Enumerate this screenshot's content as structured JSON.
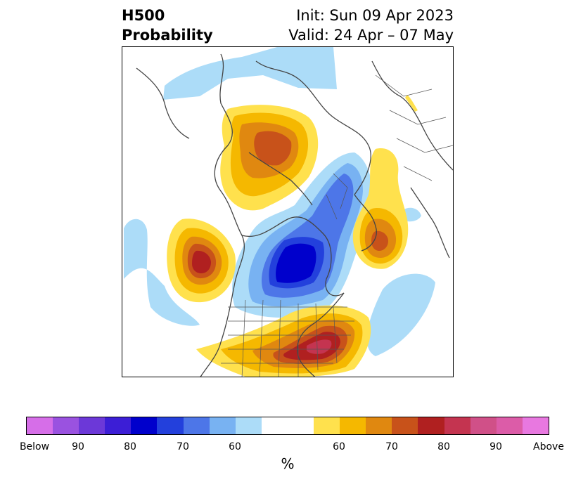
{
  "header": {
    "left_line1": "H500",
    "left_line2": "Probability",
    "right_line1": "Init: Sun 09 Apr 2023",
    "right_line2": "Valid: 24 Apr – 07 May"
  },
  "colorbar": {
    "unit": "%",
    "colors": [
      "#d66ee8",
      "#9a52e0",
      "#6c38d8",
      "#3c1ed6",
      "#0000cc",
      "#2340dc",
      "#4d76e8",
      "#78b2f2",
      "#acdcf8",
      "#ffffff",
      "#ffe14d",
      "#f5b800",
      "#e08810",
      "#c8521a",
      "#b02020",
      "#c43450",
      "#d05088",
      "#dc5ca8",
      "#e878e0"
    ],
    "tick_labels": [
      "Below",
      "90",
      "80",
      "70",
      "60",
      "60",
      "70",
      "80",
      "90",
      "Above"
    ]
  },
  "map": {
    "projection": "north-polar-stereographic",
    "colors": {
      "blue_60": "#acdcf8",
      "blue_65": "#78b2f2",
      "blue_70": "#4d76e8",
      "blue_80": "#2340dc",
      "blue_90": "#0000cc",
      "yellow_60": "#ffe14d",
      "yellow_65": "#f5b800",
      "orange_70": "#e08810",
      "orange_75": "#c8521a",
      "red_80": "#b02020",
      "red_85": "#c43450",
      "coast": "#444444"
    }
  }
}
